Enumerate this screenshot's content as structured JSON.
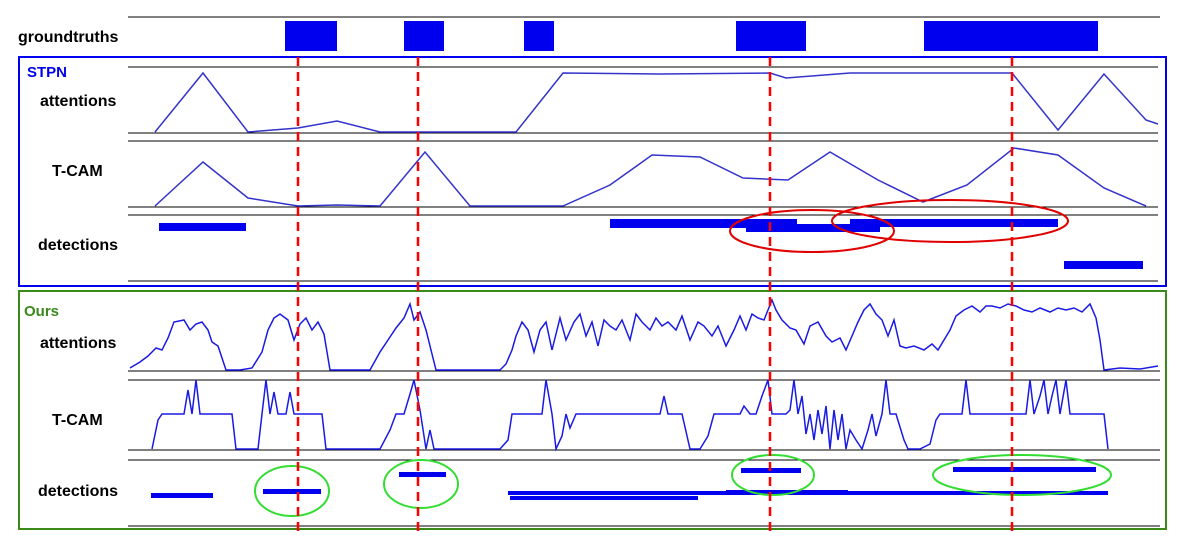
{
  "row_labels": {
    "groundtruths": "groundtruths",
    "stpn_attentions": "attentions",
    "stpn_tcam": "T-CAM",
    "stpn_detections": "detections",
    "ours_attentions": "attentions",
    "ours_tcam": "T-CAM",
    "ours_detections": "detections"
  },
  "sections": {
    "stpn": {
      "title": "STPN",
      "color": "#0000ee"
    },
    "ours": {
      "title": "Ours",
      "color": "#3a8a1a"
    }
  },
  "colors": {
    "segment": "#0000ee",
    "curve": "#3333cc",
    "ours_curve": "#1a1ae6",
    "guide": "#ff0000",
    "error_ellipse": "#e00000",
    "correct_ellipse": "#33dd33",
    "axis": "#000000"
  }
}
